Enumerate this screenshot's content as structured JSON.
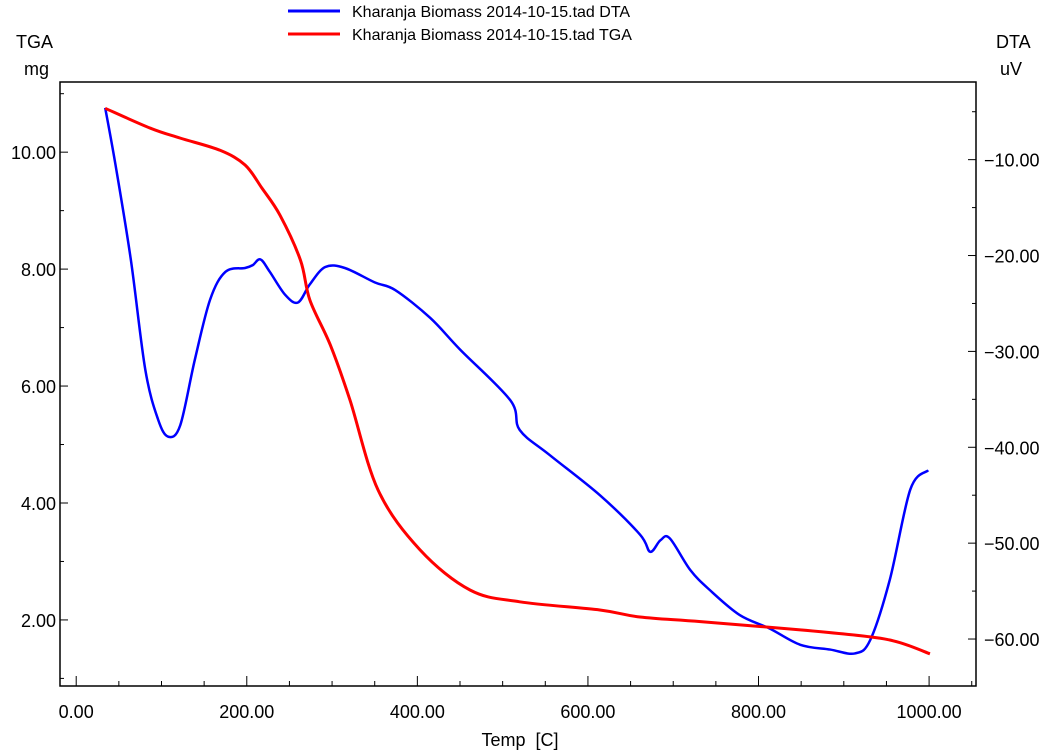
{
  "chart_data": {
    "type": "line",
    "title": "",
    "xlabel": "Temp  [C]",
    "y_left_label": [
      "TGA",
      "mg"
    ],
    "y_right_label": [
      "DTA",
      "uV"
    ],
    "xlim": [
      -19,
      1055
    ],
    "ylim_left": [
      0.87,
      11.2
    ],
    "ylim_right": [
      -64.9,
      -1.9
    ],
    "x_ticks": [
      0,
      200,
      400,
      600,
      800,
      1000
    ],
    "x_tick_labels": [
      "0.00",
      "200.00",
      "400.00",
      "600.00",
      "800.00",
      "1000.00"
    ],
    "y_left_ticks": [
      2,
      4,
      6,
      8,
      10
    ],
    "y_left_tick_labels": [
      "2.00",
      "4.00",
      "6.00",
      "8.00",
      "10.00"
    ],
    "y_right_ticks": [
      -60,
      -50,
      -40,
      -30,
      -20,
      -10
    ],
    "y_right_tick_labels": [
      "-60.00",
      "-50.00",
      "-40.00",
      "-30.00",
      "-20.00",
      "-10.00"
    ],
    "grid": false,
    "legend_position": "top-center",
    "series": [
      {
        "name": "Kharanja Biomass 2014-10-15.tad DTA",
        "axis": "right",
        "color": "#0000ff",
        "x": [
          34,
          46,
          64,
          81,
          96,
          108,
          122,
          139,
          157,
          175,
          198,
          207,
          216,
          227,
          245,
          260,
          274,
          292,
          315,
          350,
          374,
          415,
          450,
          509,
          520,
          555,
          614,
          661,
          673,
          685,
          696,
          720,
          743,
          778,
          813,
          849,
          884,
          913,
          931,
          954,
          978,
          999
        ],
        "y": [
          -4.6,
          -10.5,
          -20.4,
          -31.9,
          -37.1,
          -38.9,
          -37.7,
          -30.9,
          -24.6,
          -21.7,
          -21.3,
          -21.0,
          -20.4,
          -21.7,
          -24.1,
          -24.9,
          -23.0,
          -21.2,
          -21.3,
          -22.8,
          -23.6,
          -26.5,
          -29.8,
          -35.1,
          -38.2,
          -40.8,
          -45.0,
          -49.1,
          -50.9,
          -49.7,
          -49.5,
          -52.8,
          -54.9,
          -57.5,
          -58.9,
          -60.6,
          -61.1,
          -61.5,
          -60.1,
          -53.8,
          -44.4,
          -42.4
        ]
      },
      {
        "name": "Kharanja Biomass 2014-10-15.tad TGA",
        "axis": "left",
        "color": "#ff0000",
        "x": [
          34,
          87,
          122,
          169,
          198,
          218,
          239,
          263,
          274,
          298,
          321,
          354,
          403,
          462,
          520,
          614,
          661,
          732,
          849,
          931,
          966,
          1001
        ],
        "y": [
          10.75,
          10.41,
          10.24,
          10.03,
          9.78,
          9.38,
          8.92,
          8.15,
          7.47,
          6.7,
          5.76,
          4.22,
          3.2,
          2.51,
          2.31,
          2.17,
          2.05,
          1.97,
          1.83,
          1.71,
          1.61,
          1.42
        ]
      }
    ]
  }
}
